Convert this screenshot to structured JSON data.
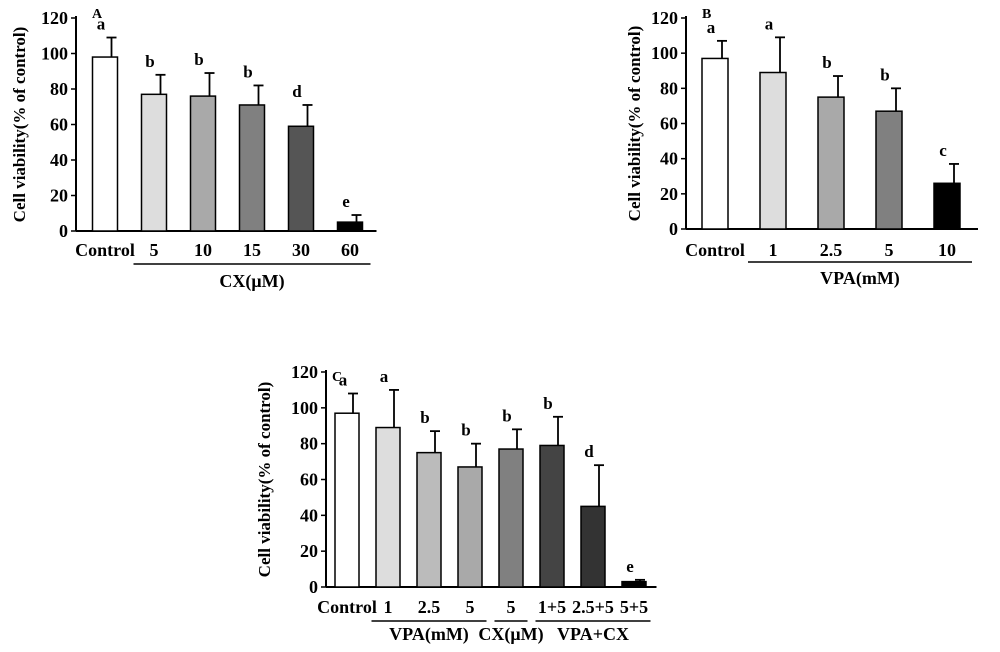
{
  "chart_data": [
    {
      "type": "bar",
      "panel_label": "A",
      "ylabel": "Cell viability(% of control)",
      "ylim": [
        0,
        120
      ],
      "yticks": [
        "0",
        "20",
        "40",
        "60",
        "80",
        "100",
        "120"
      ],
      "categories": [
        "Control",
        "5",
        "10",
        "15",
        "30",
        "60"
      ],
      "values": [
        98,
        77,
        76,
        71,
        59,
        5
      ],
      "errors": [
        11,
        11,
        13,
        11,
        12,
        4
      ],
      "significance": [
        "a",
        "b",
        "b",
        "b",
        "d",
        "e"
      ],
      "fills": [
        "#ffffff",
        "#dddddd",
        "#a9a9a9",
        "#808080",
        "#555555",
        "#000000"
      ],
      "groups": [
        {
          "label": "CX(μM)",
          "from": 1,
          "to": 5
        }
      ],
      "grid": false
    },
    {
      "type": "bar",
      "panel_label": "B",
      "ylabel": "Cell viability(% of control)",
      "ylim": [
        0,
        120
      ],
      "yticks": [
        "0",
        "20",
        "40",
        "60",
        "80",
        "100",
        "120"
      ],
      "categories": [
        "Control",
        "1",
        "2.5",
        "5",
        "10"
      ],
      "values": [
        97,
        89,
        75,
        67,
        26
      ],
      "errors": [
        10,
        20,
        12,
        13,
        11
      ],
      "significance": [
        "a",
        "a",
        "b",
        "b",
        "c"
      ],
      "fills": [
        "#ffffff",
        "#dddddd",
        "#a9a9a9",
        "#808080",
        "#000000"
      ],
      "groups": [
        {
          "label": "VPA(mM)",
          "from": 1,
          "to": 4
        }
      ],
      "grid": false
    },
    {
      "type": "bar",
      "panel_label": "C",
      "ylabel": "Cell viability(% of control)",
      "ylim": [
        0,
        120
      ],
      "yticks": [
        "0",
        "20",
        "40",
        "60",
        "80",
        "100",
        "120"
      ],
      "categories": [
        "Control",
        "1",
        "2.5",
        "5",
        "5",
        "1+5",
        "2.5+5",
        "5+5"
      ],
      "values": [
        97,
        89,
        75,
        67,
        77,
        79,
        45,
        3
      ],
      "errors": [
        11,
        21,
        12,
        13,
        11,
        16,
        23,
        1
      ],
      "significance": [
        "a",
        "a",
        "b",
        "b",
        "b",
        "b",
        "d",
        "e"
      ],
      "fills": [
        "#ffffff",
        "#dddddd",
        "#bbbbbb",
        "#a9a9a9",
        "#808080",
        "#444444",
        "#333333",
        "#000000"
      ],
      "groups": [
        {
          "label": "VPA(mM)",
          "from": 1,
          "to": 3
        },
        {
          "label": "CX(μM)",
          "from": 4,
          "to": 4
        },
        {
          "label": "VPA+CX",
          "from": 5,
          "to": 7
        }
      ],
      "grid": false
    }
  ]
}
